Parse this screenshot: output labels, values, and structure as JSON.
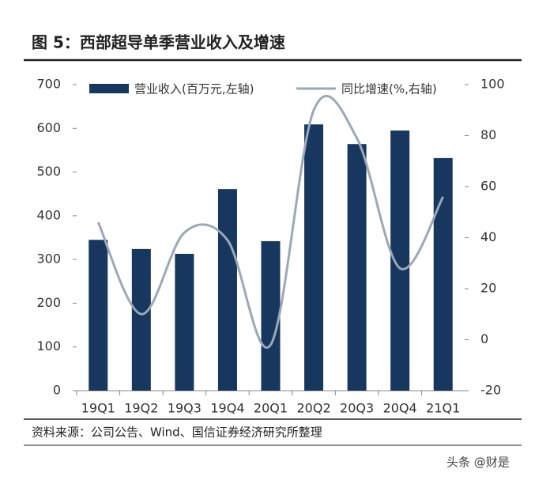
{
  "chart_data": {
    "type": "bar-line",
    "title": "图 5：西部超导单季营业收入及增速",
    "source": "资料来源：公司公告、Wind、国信证券经济研究所整理",
    "watermark": "头条 @财是",
    "categories": [
      "19Q1",
      "19Q2",
      "19Q3",
      "19Q4",
      "20Q1",
      "20Q2",
      "20Q3",
      "20Q4",
      "21Q1"
    ],
    "series": [
      {
        "name": "营业收入(百万元,左轴)",
        "color": "#17375e",
        "type": "bar",
        "values": [
          345,
          324,
          313,
          461,
          342,
          609,
          564,
          595,
          532
        ]
      },
      {
        "name": "同比增速(%,右轴)",
        "color": "#9aa8b8",
        "type": "line",
        "axis": "y2",
        "values": [
          46,
          10,
          42,
          39,
          -2,
          90,
          79,
          28,
          56
        ]
      }
    ],
    "ylim": [
      0,
      700
    ],
    "yticks": [
      0,
      100,
      200,
      300,
      400,
      500,
      600,
      700
    ],
    "y2lim": [
      -20,
      100
    ],
    "y2ticks": [
      -20,
      0,
      20,
      40,
      60,
      80,
      100
    ]
  }
}
